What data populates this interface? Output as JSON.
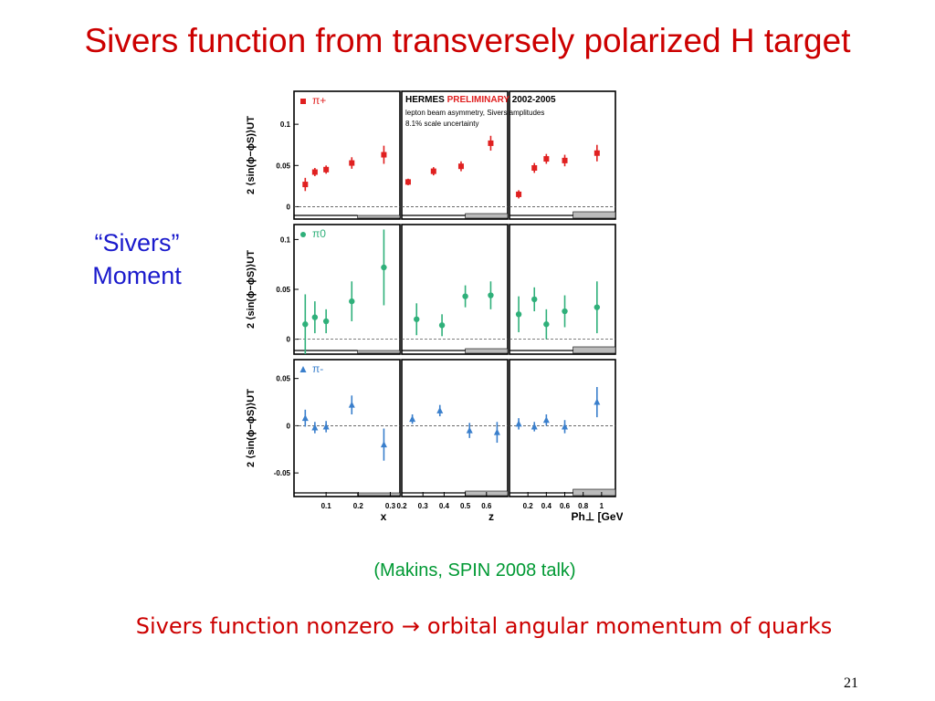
{
  "slide": {
    "title": "Sivers function from transversely polarized H target",
    "side_label_line1": "“Sivers”",
    "side_label_line2": "Moment",
    "citation": "(Makins, SPIN 2008 talk)",
    "conclusion_left": "Sivers function nonzero",
    "conclusion_arrow": "→",
    "conclusion_right": "orbital angular momentum of quarks",
    "page_number": "21"
  },
  "colors": {
    "title": "#cc0000",
    "side_label": "#1a1acc",
    "citation": "#009933",
    "pi_plus": "#e02020",
    "pi_zero": "#2fb07a",
    "pi_minus": "#3a7fcc"
  },
  "chart_data": {
    "type": "scatter",
    "header_line1_a": "HERMES",
    "header_line1_b": "PRELIMINARY",
    "header_line1_c": "2002-2005",
    "header_line2": "lepton beam asymmetry, Sivers amplitudes",
    "header_line3": "8.1% scale uncertainty",
    "ylabel": "2 ⟨sin(ϕ−ϕS)⟩UT",
    "columns": [
      {
        "xlabel": "x",
        "xlim": [
          0.0,
          0.33
        ],
        "ticks": [
          0.1,
          0.2,
          0.3
        ],
        "tick_labels": [
          "0.1",
          "0.2",
          "0.3"
        ]
      },
      {
        "xlabel": "z",
        "xlim": [
          0.2,
          0.7
        ],
        "ticks": [
          0.2,
          0.3,
          0.4,
          0.5,
          0.6
        ],
        "tick_labels": [
          "0.2",
          "0.3",
          "0.4",
          "0.5",
          "0.6"
        ]
      },
      {
        "xlabel": "Ph⊥ [GeV]",
        "xlim": [
          0.0,
          1.15
        ],
        "ticks": [
          0.2,
          0.4,
          0.6,
          0.8,
          1.0
        ],
        "tick_labels": [
          "0.2",
          "0.4",
          "0.6",
          "0.8",
          "1"
        ]
      }
    ],
    "rows": [
      {
        "name": "π+",
        "marker": "square",
        "color": "#e02020",
        "ylim": [
          -0.015,
          0.14
        ],
        "yticks": [
          0,
          0.05,
          0.1
        ],
        "ytick_labels": [
          "0",
          "0.05",
          "0.1"
        ],
        "panels": [
          {
            "x": [
              0.035,
              0.065,
              0.1,
              0.18,
              0.28
            ],
            "y": [
              0.027,
              0.042,
              0.045,
              0.053,
              0.063
            ],
            "err": [
              0.008,
              0.005,
              0.005,
              0.007,
              0.011
            ]
          },
          {
            "x": [
              0.23,
              0.35,
              0.48,
              0.62
            ],
            "y": [
              0.03,
              0.043,
              0.049,
              0.077
            ],
            "err": [
              0.004,
              0.005,
              0.006,
              0.009
            ]
          },
          {
            "x": [
              0.1,
              0.27,
              0.4,
              0.6,
              0.95
            ],
            "y": [
              0.015,
              0.047,
              0.058,
              0.056,
              0.065
            ],
            "err": [
              0.005,
              0.006,
              0.006,
              0.007,
              0.01
            ]
          }
        ]
      },
      {
        "name": "π0",
        "marker": "circle",
        "color": "#2fb07a",
        "ylim": [
          -0.015,
          0.115
        ],
        "yticks": [
          0,
          0.05,
          0.1
        ],
        "ytick_labels": [
          "0",
          "0.05",
          "0.1"
        ],
        "panels": [
          {
            "x": [
              0.035,
              0.065,
              0.1,
              0.18,
              0.28
            ],
            "y": [
              0.015,
              0.022,
              0.018,
              0.038,
              0.072
            ],
            "err": [
              0.03,
              0.016,
              0.012,
              0.02,
              0.038
            ]
          },
          {
            "x": [
              0.27,
              0.39,
              0.5,
              0.62
            ],
            "y": [
              0.02,
              0.014,
              0.043,
              0.044
            ],
            "err": [
              0.016,
              0.011,
              0.011,
              0.014
            ]
          },
          {
            "x": [
              0.1,
              0.27,
              0.4,
              0.6,
              0.95
            ],
            "y": [
              0.025,
              0.04,
              0.015,
              0.028,
              0.032
            ],
            "err": [
              0.018,
              0.012,
              0.015,
              0.016,
              0.026
            ]
          }
        ]
      },
      {
        "name": "π-",
        "marker": "triangle",
        "color": "#3a7fcc",
        "ylim": [
          -0.075,
          0.07
        ],
        "yticks": [
          -0.05,
          0,
          0.05
        ],
        "ytick_labels": [
          "-0.05",
          "0",
          "0.05"
        ],
        "panels": [
          {
            "x": [
              0.035,
              0.065,
              0.1,
              0.18,
              0.28
            ],
            "y": [
              0.008,
              -0.002,
              -0.001,
              0.022,
              -0.02
            ],
            "err": [
              0.009,
              0.006,
              0.006,
              0.01,
              0.017
            ]
          },
          {
            "x": [
              0.25,
              0.38,
              0.52,
              0.65
            ],
            "y": [
              0.007,
              0.016,
              -0.005,
              -0.007
            ],
            "err": [
              0.005,
              0.006,
              0.008,
              0.011
            ]
          },
          {
            "x": [
              0.1,
              0.27,
              0.4,
              0.6,
              0.95
            ],
            "y": [
              0.002,
              -0.001,
              0.006,
              -0.001,
              0.025
            ],
            "err": [
              0.006,
              0.005,
              0.006,
              0.007,
              0.016
            ]
          }
        ]
      }
    ]
  }
}
